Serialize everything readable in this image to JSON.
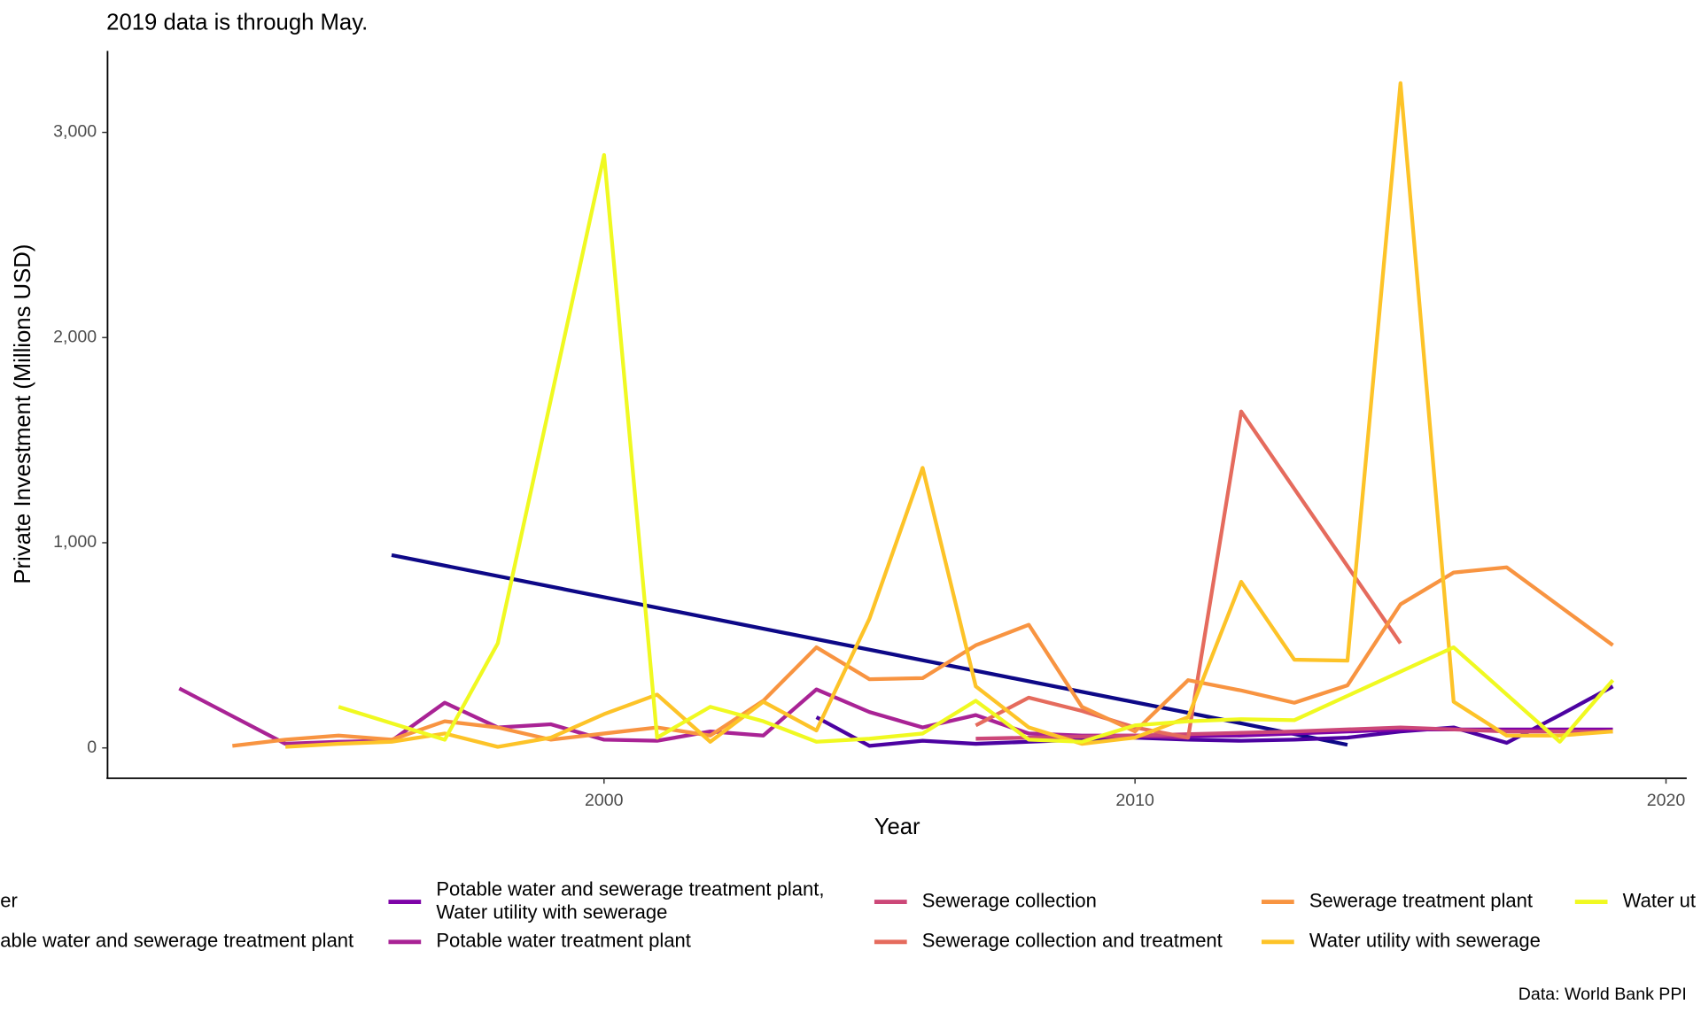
{
  "chart_data": {
    "type": "line",
    "subtitle": "2019 data is through May.",
    "caption": "Data: World Bank PPI",
    "x_label": "Year",
    "y_label": "Private Investment (Millions USD)",
    "xlim": [
      1990.65,
      2020.39
    ],
    "ylim": [
      -148,
      3397
    ],
    "xticks": [
      2000,
      2010,
      2020
    ],
    "yticks": [
      0,
      {
        "value": 1000,
        "label": "1,000"
      },
      {
        "value": 2000,
        "label": "2,000"
      },
      {
        "value": 3000,
        "label": "3,000"
      }
    ],
    "grid": false,
    "legend_position": "bottom",
    "series": [
      {
        "name": "er",
        "color": "#0D0887",
        "x": [
          1996,
          2012,
          2014
        ],
        "values": [
          940,
          120,
          15
        ]
      },
      {
        "name": "able water and sewerage treatment plant",
        "color": "#4C02A1",
        "x": [
          2004,
          2005,
          2006,
          2007,
          2008,
          2009,
          2010,
          2011,
          2012,
          2013,
          2014,
          2015,
          2016,
          2017,
          2018,
          2019
        ],
        "values": [
          150,
          10,
          35,
          20,
          30,
          40,
          50,
          40,
          35,
          40,
          50,
          80,
          100,
          25,
          160,
          300
        ]
      },
      {
        "name": "Potable water and sewerage treatment plant,\nWater utility with sewerage",
        "color": "#7E03A8",
        "x": [
          2008,
          2012,
          2015,
          2019
        ],
        "values": [
          50,
          60,
          90,
          90
        ]
      },
      {
        "name": "Potable water treatment plant",
        "color": "#A92395",
        "x": [
          1992,
          1994,
          1995,
          1996,
          1997,
          1998,
          1999,
          2000,
          2001,
          2002,
          2003,
          2004,
          2005,
          2006,
          2007,
          2008,
          2009,
          2010,
          2011
        ],
        "values": [
          290,
          20,
          30,
          35,
          220,
          100,
          115,
          40,
          35,
          80,
          60,
          285,
          175,
          100,
          160,
          70,
          60,
          60,
          50
        ]
      },
      {
        "name": "Sewerage collection",
        "color": "#CC4778",
        "x": [
          2007,
          2008,
          2010,
          2013,
          2015,
          2017,
          2019
        ],
        "values": [
          45,
          50,
          60,
          80,
          100,
          80,
          80
        ]
      },
      {
        "name": "Sewerage collection and treatment",
        "color": "#E56B5D",
        "x": [
          2007,
          2008,
          2009,
          2010,
          2011,
          2012,
          2015
        ],
        "values": [
          110,
          245,
          180,
          100,
          50,
          1640,
          510
        ]
      },
      {
        "name": "Sewerage treatment plant",
        "color": "#F89441",
        "x": [
          1993,
          1994,
          1995,
          1996,
          1997,
          1998,
          1999,
          2000,
          2001,
          2002,
          2003,
          2004,
          2005,
          2006,
          2007,
          2008,
          2009,
          2010,
          2011,
          2012,
          2013,
          2014,
          2015,
          2016,
          2017,
          2018,
          2019
        ],
        "values": [
          10,
          40,
          60,
          40,
          130,
          100,
          40,
          70,
          100,
          60,
          230,
          490,
          335,
          340,
          500,
          600,
          200,
          80,
          330,
          280,
          220,
          305,
          700,
          855,
          880,
          690,
          500
        ]
      },
      {
        "name": "Water utility with sewerage",
        "color": "#FDC328",
        "x": [
          1994,
          1995,
          1996,
          1997,
          1998,
          1999,
          2000,
          2001,
          2002,
          2003,
          2004,
          2005,
          2006,
          2007,
          2008,
          2009,
          2010,
          2011,
          2012,
          2013,
          2014,
          2015,
          2016,
          2017,
          2018,
          2019
        ],
        "values": [
          5,
          20,
          30,
          70,
          5,
          50,
          165,
          260,
          30,
          225,
          85,
          630,
          1365,
          300,
          100,
          20,
          50,
          150,
          810,
          430,
          425,
          3240,
          225,
          60,
          60,
          80
        ]
      },
      {
        "name": "Water ut",
        "color": "#F0F921",
        "x": [
          1995,
          1997,
          1998,
          2000,
          2001,
          2002,
          2003,
          2004,
          2005,
          2006,
          2007,
          2008,
          2009,
          2010,
          2011,
          2012,
          2013,
          2016,
          2018,
          2019
        ],
        "values": [
          200,
          40,
          510,
          2890,
          50,
          200,
          130,
          30,
          45,
          70,
          230,
          40,
          30,
          110,
          130,
          140,
          135,
          490,
          30,
          330
        ]
      }
    ]
  }
}
